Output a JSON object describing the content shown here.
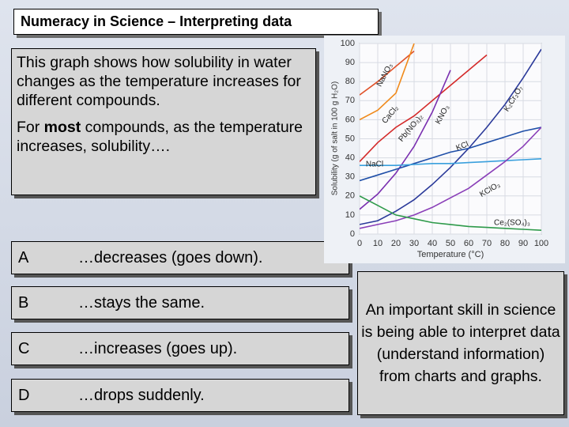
{
  "title": "Numeracy in Science – Interpreting data",
  "intro": {
    "text1": "This graph shows how solubility in water changes as the temperature increases for different compounds.",
    "text2": [
      "For ",
      "most",
      " compounds, as the temperature increases, solubility…."
    ]
  },
  "options": [
    {
      "letter": "A",
      "text": "…decreases (goes down)."
    },
    {
      "letter": "B",
      "text": "…stays the same."
    },
    {
      "letter": "C",
      "text": "…increases (goes up)."
    },
    {
      "letter": "D",
      "text": "…drops suddenly."
    }
  ],
  "note": "An important skill in science is being able to interpret data (understand information) from charts and graphs.",
  "chart_data": {
    "type": "line",
    "x_label": "Temperature (°C)",
    "y_label": "Solubility (g of salt in 100 g H₂O)",
    "x": [
      0,
      10,
      20,
      30,
      40,
      50,
      60,
      70,
      80,
      90,
      100
    ],
    "xlim": [
      0,
      100
    ],
    "xticks": [
      0,
      10,
      20,
      30,
      40,
      50,
      60,
      70,
      80,
      90,
      100
    ],
    "ylim": [
      0,
      100
    ],
    "yticks": [
      0,
      10,
      20,
      30,
      40,
      50,
      60,
      70,
      80,
      90,
      100
    ],
    "grid": true,
    "series": [
      {
        "name": "NaNO₃",
        "color": "#e0522a",
        "values": [
          73,
          80,
          88,
          96,
          null,
          null,
          null,
          null,
          null,
          null,
          null
        ]
      },
      {
        "name": "CaCl₂",
        "color": "#f08a1c",
        "values": [
          60,
          65,
          74,
          100,
          null,
          null,
          null,
          null,
          null,
          null,
          null
        ]
      },
      {
        "name": "Pb(NO₃)₂",
        "color": "#d42a2a",
        "values": [
          38,
          48,
          56,
          62,
          70,
          78,
          86,
          94,
          null,
          null,
          null
        ]
      },
      {
        "name": "KNO₃",
        "color": "#7a2fb0",
        "values": [
          13,
          21,
          32,
          46,
          64,
          86,
          null,
          null,
          null,
          null,
          null
        ]
      },
      {
        "name": "K₂Cr₂O₇",
        "color": "#2b3a9a",
        "values": [
          5,
          7,
          12,
          18,
          26,
          35,
          45,
          56,
          68,
          82,
          97
        ]
      },
      {
        "name": "KCl",
        "color": "#1f4fa8",
        "values": [
          28,
          31,
          34,
          37,
          40,
          43,
          45,
          48,
          51,
          54,
          56
        ]
      },
      {
        "name": "NaCl",
        "color": "#3aa0dd",
        "values": [
          36,
          36,
          36,
          36.5,
          37,
          37,
          37.5,
          38,
          38.5,
          39,
          39.5
        ]
      },
      {
        "name": "KClO₃",
        "color": "#8a3fb8",
        "values": [
          3,
          5,
          7,
          10,
          14,
          19,
          24,
          31,
          38,
          46,
          56
        ]
      },
      {
        "name": "Ce₂(SO₄)₃",
        "color": "#2e9a4a",
        "values": [
          20,
          15,
          10,
          8,
          6,
          5,
          4,
          3.5,
          3,
          2.5,
          2
        ]
      }
    ]
  }
}
